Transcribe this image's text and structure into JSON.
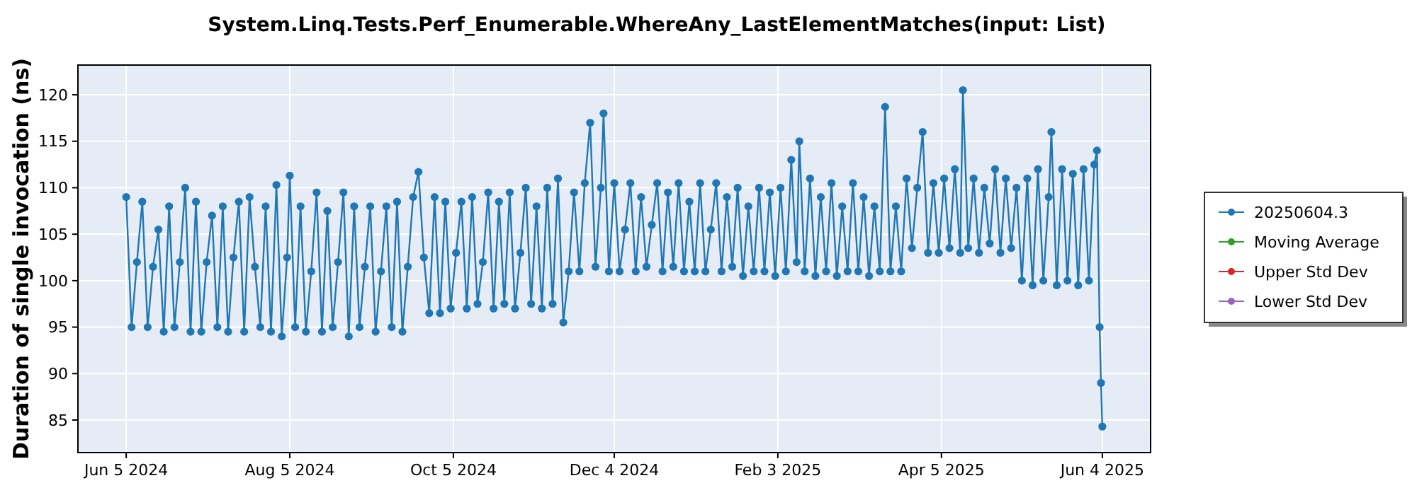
{
  "chart_data": {
    "type": "line",
    "title": "System.Linq.Tests.Perf_Enumerable.WhereAny_LastElementMatches(input: List)",
    "ylabel": "Duration of single invocation (ns)",
    "xlim": [
      "2024-05-18",
      "2025-06-22"
    ],
    "xticks": [
      {
        "value": "2024-06-05",
        "label": "Jun 5 2024"
      },
      {
        "value": "2024-08-05",
        "label": "Aug 5 2024"
      },
      {
        "value": "2024-10-05",
        "label": "Oct 5 2024"
      },
      {
        "value": "2024-12-04",
        "label": "Dec 4 2024"
      },
      {
        "value": "2025-02-03",
        "label": "Feb 3 2025"
      },
      {
        "value": "2025-04-05",
        "label": "Apr 5 2025"
      },
      {
        "value": "2025-06-04",
        "label": "Jun 4 2025"
      }
    ],
    "ylim": [
      81.5,
      123.2
    ],
    "yticks": [
      85,
      90,
      95,
      100,
      105,
      110,
      115,
      120
    ],
    "grid": true,
    "legend": "right",
    "marker": "circle",
    "line_style": "solid",
    "series": [
      {
        "name": "20250604.3",
        "color": "#1f77b4",
        "x": [
          "2024-06-05",
          "2024-06-07",
          "2024-06-09",
          "2024-06-11",
          "2024-06-13",
          "2024-06-15",
          "2024-06-17",
          "2024-06-19",
          "2024-06-21",
          "2024-06-23",
          "2024-06-25",
          "2024-06-27",
          "2024-06-29",
          "2024-07-01",
          "2024-07-03",
          "2024-07-05",
          "2024-07-07",
          "2024-07-09",
          "2024-07-11",
          "2024-07-13",
          "2024-07-15",
          "2024-07-17",
          "2024-07-19",
          "2024-07-21",
          "2024-07-23",
          "2024-07-25",
          "2024-07-27",
          "2024-07-29",
          "2024-07-31",
          "2024-08-02",
          "2024-08-04",
          "2024-08-05",
          "2024-08-07",
          "2024-08-09",
          "2024-08-11",
          "2024-08-13",
          "2024-08-15",
          "2024-08-17",
          "2024-08-19",
          "2024-08-21",
          "2024-08-23",
          "2024-08-25",
          "2024-08-27",
          "2024-08-29",
          "2024-08-31",
          "2024-09-02",
          "2024-09-04",
          "2024-09-06",
          "2024-09-08",
          "2024-09-10",
          "2024-09-12",
          "2024-09-14",
          "2024-09-16",
          "2024-09-18",
          "2024-09-20",
          "2024-09-22",
          "2024-09-24",
          "2024-09-26",
          "2024-09-28",
          "2024-09-30",
          "2024-10-02",
          "2024-10-04",
          "2024-10-06",
          "2024-10-08",
          "2024-10-10",
          "2024-10-12",
          "2024-10-14",
          "2024-10-16",
          "2024-10-18",
          "2024-10-20",
          "2024-10-22",
          "2024-10-24",
          "2024-10-26",
          "2024-10-28",
          "2024-10-30",
          "2024-11-01",
          "2024-11-03",
          "2024-11-05",
          "2024-11-07",
          "2024-11-09",
          "2024-11-11",
          "2024-11-13",
          "2024-11-15",
          "2024-11-17",
          "2024-11-19",
          "2024-11-21",
          "2024-11-23",
          "2024-11-25",
          "2024-11-27",
          "2024-11-29",
          "2024-11-30",
          "2024-12-02",
          "2024-12-04",
          "2024-12-06",
          "2024-12-08",
          "2024-12-10",
          "2024-12-12",
          "2024-12-14",
          "2024-12-16",
          "2024-12-18",
          "2024-12-20",
          "2024-12-22",
          "2024-12-24",
          "2024-12-26",
          "2024-12-28",
          "2024-12-30",
          "2025-01-01",
          "2025-01-03",
          "2025-01-05",
          "2025-01-07",
          "2025-01-09",
          "2025-01-11",
          "2025-01-13",
          "2025-01-15",
          "2025-01-17",
          "2025-01-19",
          "2025-01-21",
          "2025-01-23",
          "2025-01-25",
          "2025-01-27",
          "2025-01-29",
          "2025-01-31",
          "2025-02-02",
          "2025-02-04",
          "2025-02-06",
          "2025-02-08",
          "2025-02-10",
          "2025-02-11",
          "2025-02-13",
          "2025-02-15",
          "2025-02-17",
          "2025-02-19",
          "2025-02-21",
          "2025-02-23",
          "2025-02-25",
          "2025-02-27",
          "2025-03-01",
          "2025-03-03",
          "2025-03-05",
          "2025-03-07",
          "2025-03-09",
          "2025-03-11",
          "2025-03-13",
          "2025-03-15",
          "2025-03-17",
          "2025-03-19",
          "2025-03-21",
          "2025-03-23",
          "2025-03-25",
          "2025-03-27",
          "2025-03-29",
          "2025-03-31",
          "2025-04-02",
          "2025-04-04",
          "2025-04-06",
          "2025-04-08",
          "2025-04-10",
          "2025-04-12",
          "2025-04-13",
          "2025-04-15",
          "2025-04-17",
          "2025-04-19",
          "2025-04-21",
          "2025-04-23",
          "2025-04-25",
          "2025-04-27",
          "2025-04-29",
          "2025-05-01",
          "2025-05-03",
          "2025-05-05",
          "2025-05-07",
          "2025-05-09",
          "2025-05-11",
          "2025-05-13",
          "2025-05-15",
          "2025-05-16",
          "2025-05-18",
          "2025-05-20",
          "2025-05-22",
          "2025-05-24",
          "2025-05-26",
          "2025-05-28",
          "2025-05-30",
          "2025-06-01",
          "2025-06-02",
          "2025-06-03",
          "2025-06-03T12:00",
          "2025-06-04"
        ],
        "values": [
          109,
          95,
          102,
          108.5,
          95,
          101.5,
          105.5,
          94.5,
          108,
          95,
          102,
          110,
          94.5,
          108.5,
          94.5,
          102,
          107,
          95,
          108,
          94.5,
          102.5,
          108.5,
          94.5,
          109,
          101.5,
          95,
          108,
          94.5,
          110.3,
          94,
          102.5,
          111.3,
          95,
          108,
          94.5,
          101,
          109.5,
          94.5,
          107.5,
          95,
          102,
          109.5,
          94,
          108,
          95,
          101.5,
          108,
          94.5,
          101,
          108,
          95,
          108.5,
          94.5,
          101.5,
          109,
          111.7,
          102.5,
          96.5,
          109,
          96.5,
          108.5,
          97,
          103,
          108.5,
          97,
          109,
          97.5,
          102,
          109.5,
          97,
          108.5,
          97.5,
          109.5,
          97,
          103,
          110,
          97.5,
          108,
          97,
          110,
          97.5,
          111,
          95.5,
          101,
          109.5,
          101,
          110.5,
          117,
          101.5,
          110,
          118,
          101,
          110.5,
          101,
          105.5,
          110.5,
          101,
          109,
          101.5,
          106,
          110.5,
          101,
          109.5,
          101.5,
          110.5,
          101,
          108.5,
          101,
          110.5,
          101,
          105.5,
          110.5,
          101,
          109,
          101.5,
          110,
          100.5,
          108,
          101,
          110,
          101,
          109.5,
          100.5,
          110,
          101,
          113,
          102,
          115,
          101,
          111,
          100.5,
          109,
          101,
          110.5,
          100.5,
          108,
          101,
          110.5,
          101,
          109,
          100.5,
          108,
          101,
          118.7,
          101,
          108,
          101,
          111,
          103.5,
          110,
          116,
          103,
          110.5,
          103,
          111,
          103.5,
          112,
          103,
          120.5,
          103.5,
          111,
          103,
          110,
          104,
          112,
          103,
          111,
          103.5,
          110,
          100,
          111,
          99.5,
          112,
          100,
          109,
          116,
          99.5,
          112,
          100,
          111.5,
          99.5,
          112,
          100,
          112.5,
          114,
          95,
          89,
          84.3
        ]
      },
      {
        "name": "Moving Average",
        "color": "#2ca02c"
      },
      {
        "name": "Upper Std Dev",
        "color": "#d62728"
      },
      {
        "name": "Lower Std Dev",
        "color": "#9467bd"
      }
    ]
  }
}
